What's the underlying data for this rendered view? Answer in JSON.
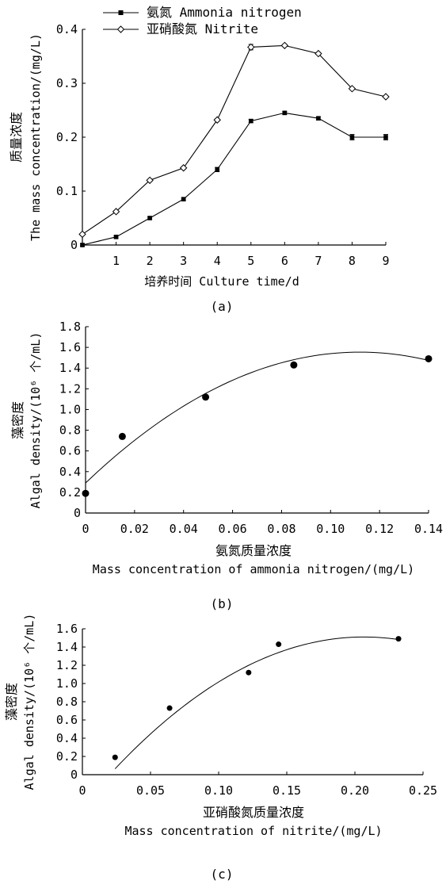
{
  "chart_data": [
    {
      "type": "line",
      "caption": "(a)",
      "legend": [
        "氨氮 Ammonia nitrogen",
        "亚硝酸氮 Nitrite"
      ],
      "legend_placement": "top-left",
      "xlabel": "培养时间 Culture time/d",
      "ylabel_cn": "质量浓度",
      "ylabel_en": "The mass concentration/(mg/L)",
      "x": [
        0,
        1,
        2,
        3,
        4,
        5,
        6,
        7,
        8,
        9
      ],
      "xticks": [
        "1",
        "2",
        "3",
        "4",
        "5",
        "6",
        "7",
        "8",
        "9"
      ],
      "xlim": [
        0,
        9
      ],
      "yticks": [
        "0",
        "0.1",
        "0.2",
        "0.3",
        "0.4"
      ],
      "ylim": [
        0,
        0.4
      ],
      "grid": false,
      "series": [
        {
          "name": "氨氮 Ammonia nitrogen",
          "marker": "filled-square",
          "values": [
            0.0,
            0.015,
            0.05,
            0.085,
            0.14,
            0.23,
            0.245,
            0.235,
            0.2,
            0.2
          ],
          "errors": [
            0.002,
            0.002,
            0.002,
            0.002,
            0.004,
            0.003,
            0.003,
            0.003,
            0.005,
            0.005
          ]
        },
        {
          "name": "亚硝酸氮 Nitrite",
          "marker": "open-diamond",
          "values": [
            0.02,
            0.062,
            0.12,
            0.143,
            0.232,
            0.367,
            0.37,
            0.355,
            0.29,
            0.275
          ],
          "errors": [
            0.002,
            0.002,
            0.002,
            0.002,
            0.002,
            0.005,
            0.002,
            0.002,
            0.002,
            0.002
          ]
        }
      ]
    },
    {
      "type": "scatter",
      "caption": "(b)",
      "xlabel_cn": "氨氮质量浓度",
      "xlabel_en": "Mass concentration of ammonia nitrogen/(mg/L)",
      "ylabel_cn": "藻密度",
      "ylabel_en": "Algal density/(10⁶ 个/mL)",
      "xticks": [
        "0",
        "0.02",
        "0.04",
        "0.06",
        "0.08",
        "0.10",
        "0.12",
        "0.14"
      ],
      "xlim": [
        0,
        0.14
      ],
      "yticks": [
        "0",
        "0.2",
        "0.4",
        "0.6",
        "0.8",
        "1.0",
        "1.2",
        "1.4",
        "1.6",
        "1.8"
      ],
      "ylim": [
        0,
        1.8
      ],
      "grid": false,
      "points": {
        "x": [
          0.0,
          0.015,
          0.049,
          0.085,
          0.14
        ],
        "y": [
          0.19,
          0.74,
          1.12,
          1.43,
          1.49
        ]
      },
      "fit": {
        "type": "quadratic",
        "coefficients": [
          0.29,
          22.6,
          -101.0
        ],
        "x_range": [
          0.0,
          0.14
        ]
      }
    },
    {
      "type": "scatter",
      "caption": "(c)",
      "xlabel_cn": "亚硝酸氮质量浓度",
      "xlabel_en": "Mass concentration of nitrite/(mg/L)",
      "ylabel_cn": "藻密度",
      "ylabel_en": "Algal density/(10⁶ 个/mL)",
      "xticks": [
        "0",
        "0.05",
        "0.10",
        "0.15",
        "0.20",
        "0.25"
      ],
      "xlim": [
        0,
        0.25
      ],
      "yticks": [
        "0",
        "0.2",
        "0.4",
        "0.6",
        "0.8",
        "1.0",
        "1.2",
        "1.4",
        "1.6"
      ],
      "ylim": [
        0,
        1.6
      ],
      "grid": false,
      "points": {
        "x": [
          0.024,
          0.064,
          0.122,
          0.144,
          0.232
        ],
        "y": [
          0.19,
          0.73,
          1.12,
          1.43,
          1.49
        ]
      },
      "fit": {
        "type": "quadratic",
        "coefficients": [
          -0.34,
          17.9,
          -43.3
        ],
        "x_range": [
          0.024,
          0.232
        ]
      }
    }
  ]
}
